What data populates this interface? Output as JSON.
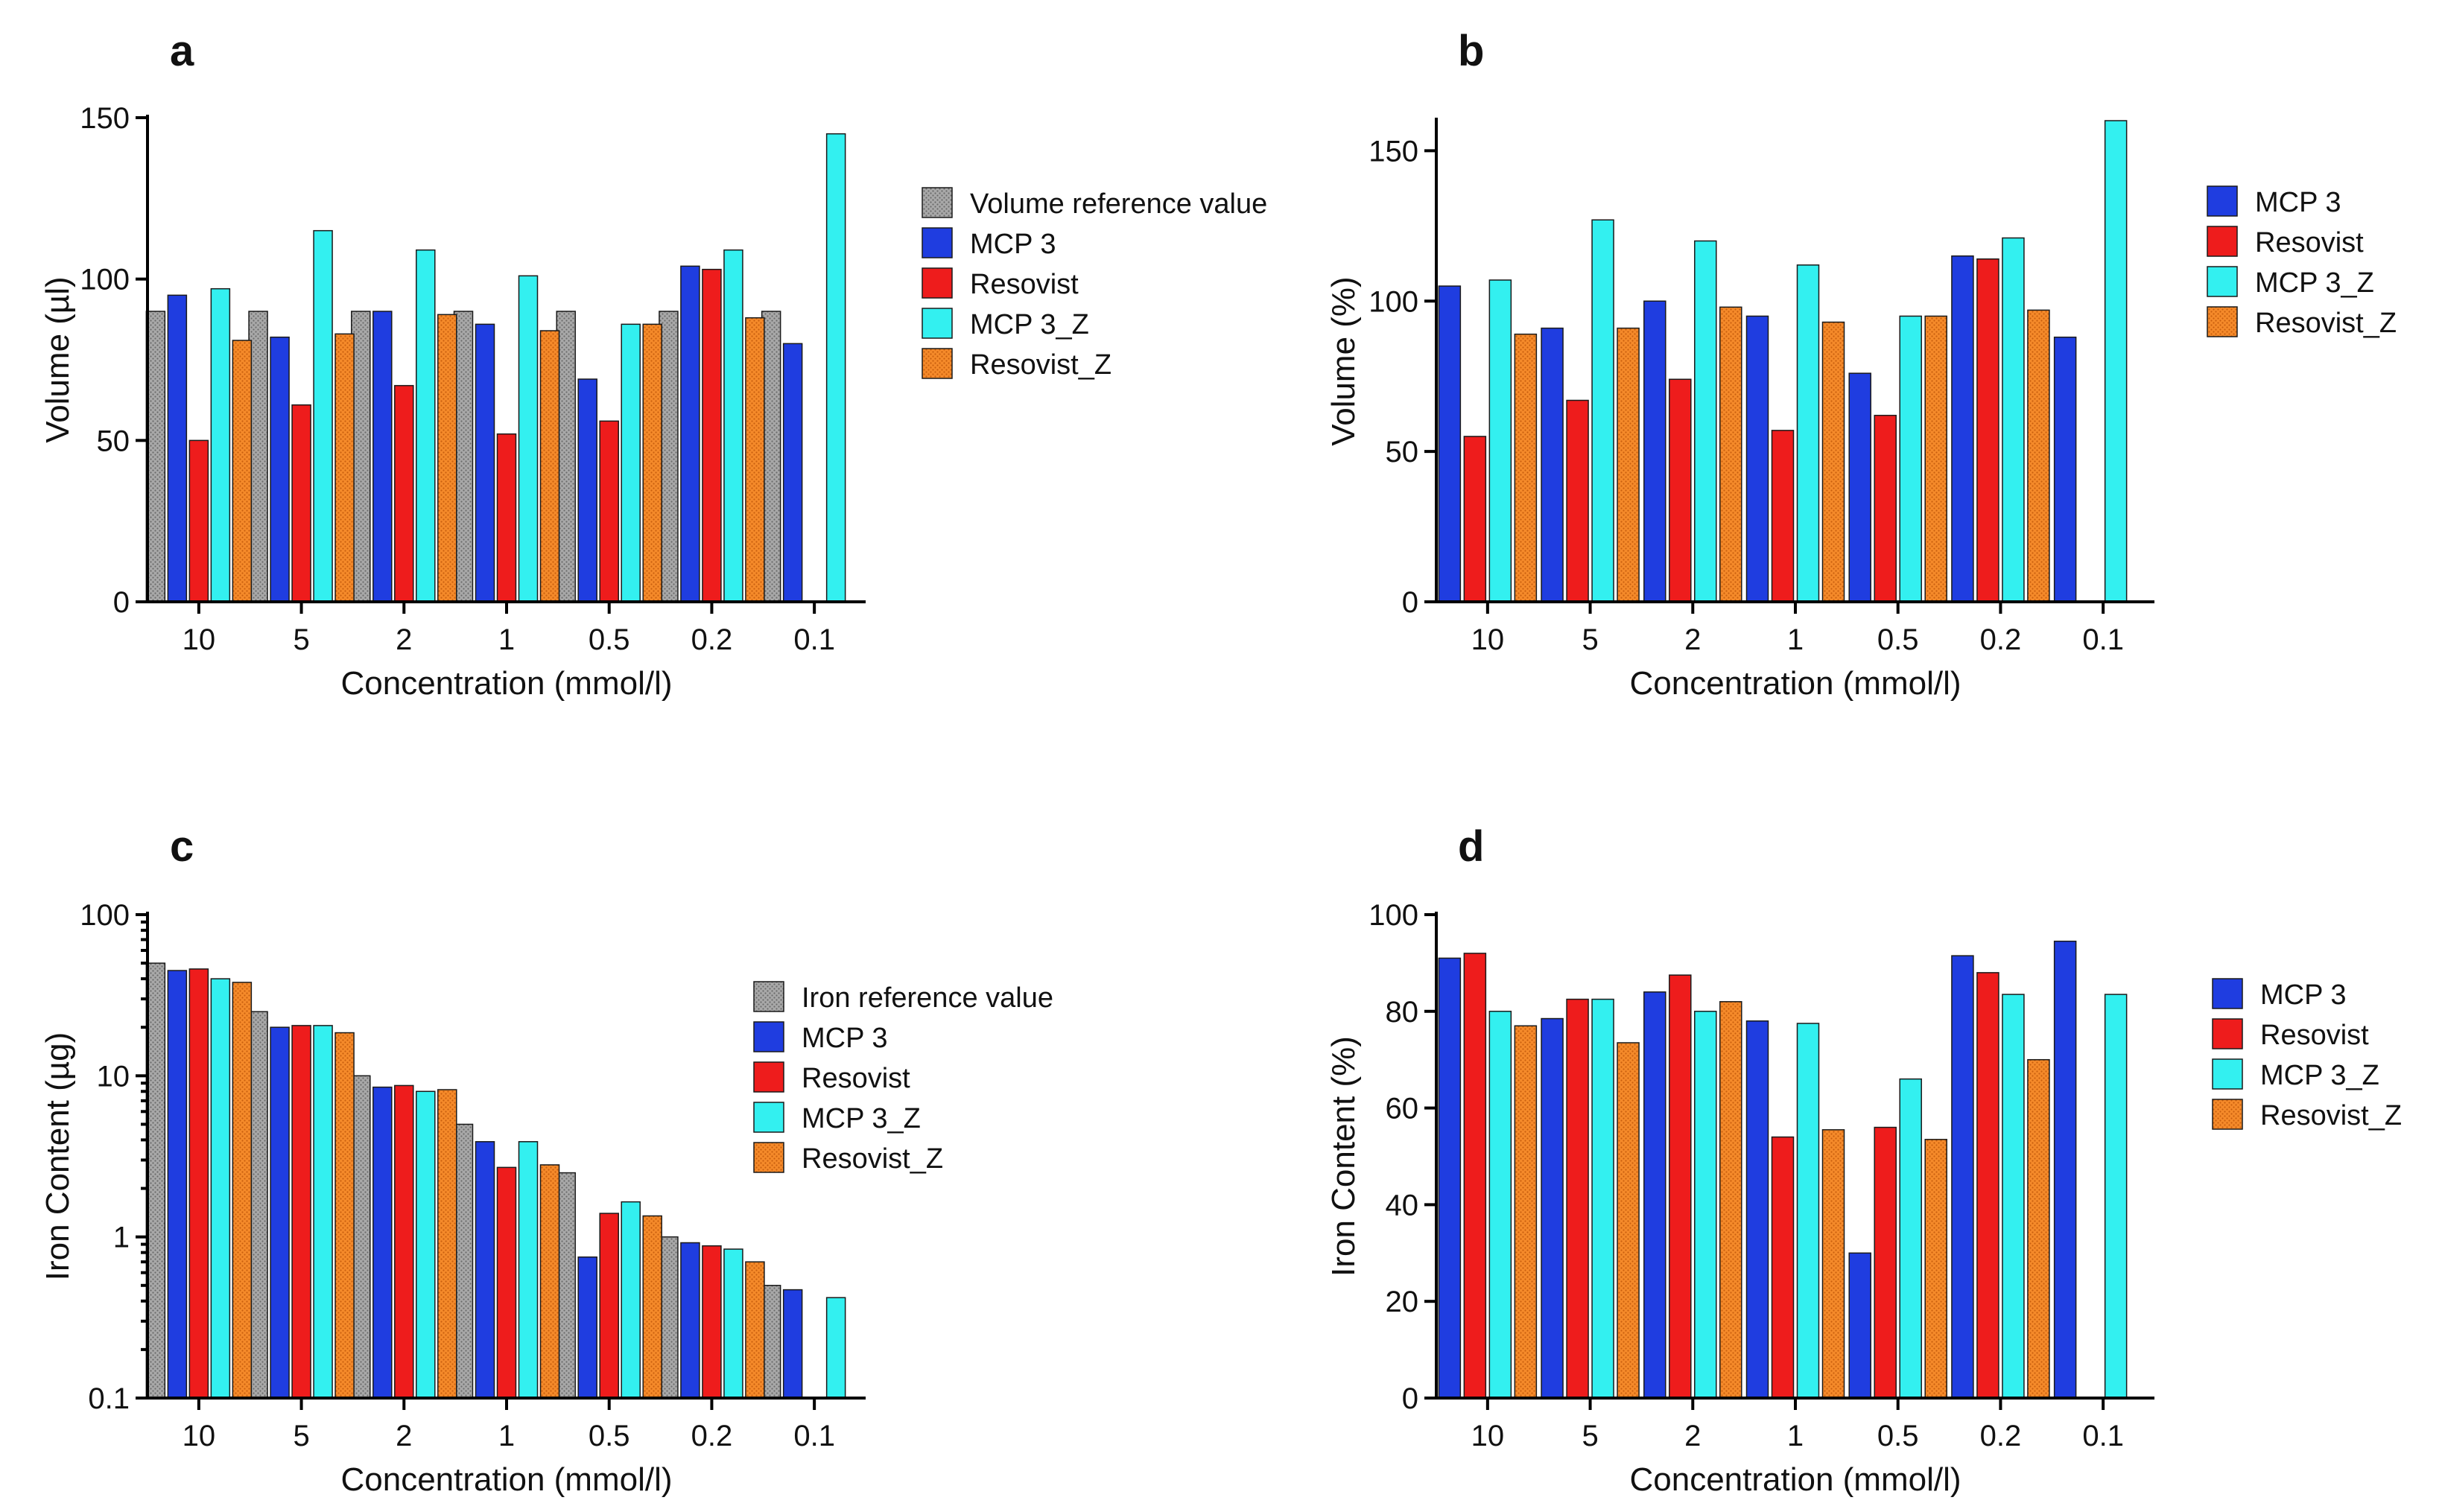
{
  "series_styles": {
    "Volume reference value": {
      "color": "#9a9a9a",
      "pattern": "dots"
    },
    "Iron reference value": {
      "color": "#9a9a9a",
      "pattern": "dots"
    },
    "MCP 3": {
      "color": "#1f3de0",
      "pattern": "none"
    },
    "Resovist": {
      "color": "#ee1c1c",
      "pattern": "none"
    },
    "MCP 3_Z": {
      "color": "#33f0f0",
      "pattern": "none"
    },
    "Resovist_Z": {
      "color": "#f58220",
      "pattern": "dots"
    }
  },
  "chart_data": [
    {
      "panel": "a",
      "type": "bar",
      "scale": "linear",
      "categories": [
        "10",
        "5",
        "2",
        "1",
        "0.5",
        "0.2",
        "0.1"
      ],
      "xlabel": "Concentration (mmol/l)",
      "ylabel": "Volume (µl)",
      "ylim": [
        0,
        150
      ],
      "yticks": [
        0,
        50,
        100,
        150
      ],
      "series": [
        {
          "name": "Volume reference value",
          "values": [
            90,
            90,
            90,
            90,
            90,
            90,
            90
          ]
        },
        {
          "name": "MCP 3",
          "values": [
            95,
            82,
            90,
            86,
            69,
            104,
            80
          ]
        },
        {
          "name": "Resovist",
          "values": [
            50,
            61,
            67,
            52,
            56,
            103,
            null
          ]
        },
        {
          "name": "MCP 3_Z",
          "values": [
            97,
            115,
            109,
            101,
            86,
            109,
            145
          ]
        },
        {
          "name": "Resovist_Z",
          "values": [
            81,
            83,
            89,
            84,
            86,
            88,
            null
          ]
        }
      ]
    },
    {
      "panel": "b",
      "type": "bar",
      "scale": "linear",
      "categories": [
        "10",
        "5",
        "2",
        "1",
        "0.5",
        "0.2",
        "0.1"
      ],
      "xlabel": "Concentration (mmol/l)",
      "ylabel": "Volume (%)",
      "ylim": [
        0,
        160
      ],
      "yticks": [
        0,
        50,
        100,
        150
      ],
      "series": [
        {
          "name": "MCP 3",
          "values": [
            105,
            91,
            100,
            95,
            76,
            115,
            88
          ]
        },
        {
          "name": "Resovist",
          "values": [
            55,
            67,
            74,
            57,
            62,
            114,
            null
          ]
        },
        {
          "name": "MCP 3_Z",
          "values": [
            107,
            127,
            120,
            112,
            95,
            121,
            160
          ]
        },
        {
          "name": "Resovist_Z",
          "values": [
            89,
            91,
            98,
            93,
            95,
            97,
            null
          ]
        }
      ]
    },
    {
      "panel": "c",
      "type": "bar",
      "scale": "log",
      "categories": [
        "10",
        "5",
        "2",
        "1",
        "0.5",
        "0.2",
        "0.1"
      ],
      "xlabel": "Concentration (mmol/l)",
      "ylabel": "Iron Content (µg)",
      "ylim": [
        0.1,
        100
      ],
      "yticks": [
        0.1,
        1,
        10,
        100
      ],
      "ytick_labels": [
        "0.1",
        "1",
        "10",
        "100"
      ],
      "series": [
        {
          "name": "Iron reference value",
          "values": [
            50,
            25,
            10,
            5,
            2.5,
            1,
            0.5
          ]
        },
        {
          "name": "MCP 3",
          "values": [
            45,
            20,
            8.5,
            3.9,
            0.75,
            0.92,
            0.47
          ]
        },
        {
          "name": "Resovist",
          "values": [
            46,
            20.5,
            8.7,
            2.7,
            1.4,
            0.88,
            null
          ]
        },
        {
          "name": "MCP 3_Z",
          "values": [
            40,
            20.5,
            8,
            3.9,
            1.65,
            0.84,
            0.42
          ]
        },
        {
          "name": "Resovist_Z",
          "values": [
            38,
            18.5,
            8.2,
            2.8,
            1.35,
            0.7,
            null
          ]
        }
      ]
    },
    {
      "panel": "d",
      "type": "bar",
      "scale": "linear",
      "categories": [
        "10",
        "5",
        "2",
        "1",
        "0.5",
        "0.2",
        "0.1"
      ],
      "xlabel": "Concentration (mmol/l)",
      "ylabel": "Iron Content  (%)",
      "ylim": [
        0,
        100
      ],
      "yticks": [
        0,
        20,
        40,
        60,
        80,
        100
      ],
      "series": [
        {
          "name": "MCP 3",
          "values": [
            91,
            78.5,
            84,
            78,
            30,
            91.5,
            94.5
          ]
        },
        {
          "name": "Resovist",
          "values": [
            92,
            82.5,
            87.5,
            54,
            56,
            88,
            null
          ]
        },
        {
          "name": "MCP 3_Z",
          "values": [
            80,
            82.5,
            80,
            77.5,
            66,
            83.5,
            83.5
          ]
        },
        {
          "name": "Resovist_Z",
          "values": [
            77,
            73.5,
            82,
            55.5,
            53.5,
            70,
            null
          ]
        }
      ]
    }
  ]
}
